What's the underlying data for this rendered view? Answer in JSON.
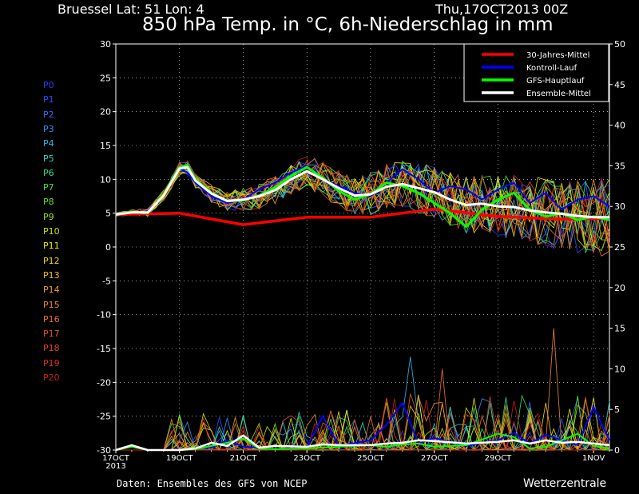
{
  "header": {
    "station": "Bruessel  Lat: 51 Lon: 4",
    "run": "Thu,17OCT2013 00Z",
    "title": "850 hPa Temp. in °C, 6h-Niederschlag in mm"
  },
  "footer": {
    "source": "Daten: Ensembles des GFS von NCEP",
    "brand": "Wetterzentrale"
  },
  "members": [
    {
      "label": "P0",
      "color": "#2040ff"
    },
    {
      "label": "P1",
      "color": "#2850ff"
    },
    {
      "label": "P2",
      "color": "#2e6cff"
    },
    {
      "label": "P3",
      "color": "#3490ff"
    },
    {
      "label": "P4",
      "color": "#30b8e8"
    },
    {
      "label": "P5",
      "color": "#30d8c8"
    },
    {
      "label": "P6",
      "color": "#30e090"
    },
    {
      "label": "P7",
      "color": "#40e050"
    },
    {
      "label": "P8",
      "color": "#60e020"
    },
    {
      "label": "P9",
      "color": "#98e010"
    },
    {
      "label": "P10",
      "color": "#c8e000"
    },
    {
      "label": "P11",
      "color": "#ecec00"
    },
    {
      "label": "P12",
      "color": "#f0d800"
    },
    {
      "label": "P13",
      "color": "#f0c000"
    },
    {
      "label": "P14",
      "color": "#f0a020"
    },
    {
      "label": "P15",
      "color": "#f08828"
    },
    {
      "label": "P16",
      "color": "#f07028"
    },
    {
      "label": "P17",
      "color": "#e85828"
    },
    {
      "label": "P18",
      "color": "#e04028"
    },
    {
      "label": "P19",
      "color": "#d83020"
    },
    {
      "label": "P20",
      "color": "#c82018"
    }
  ],
  "chart_data": {
    "type": "line",
    "x_ticks": [
      {
        "label": "17OCT",
        "sub": "2013",
        "t": 0
      },
      {
        "label": "19OCT",
        "t": 48
      },
      {
        "label": "21OCT",
        "t": 96
      },
      {
        "label": "23OCT",
        "t": 144
      },
      {
        "label": "25OCT",
        "t": 192
      },
      {
        "label": "27OCT",
        "t": 240
      },
      {
        "label": "29OCT",
        "t": 288
      },
      {
        "label": "1NOV",
        "t": 360
      }
    ],
    "xlim": [
      0,
      372
    ],
    "ylim_left": [
      -30,
      30
    ],
    "left_ticks": [
      30,
      25,
      20,
      15,
      10,
      5,
      0,
      -5,
      -10,
      -15,
      -20,
      -25,
      -30
    ],
    "ylim_right": [
      0,
      50
    ],
    "right_ticks": [
      50,
      45,
      40,
      35,
      30,
      25,
      20,
      15,
      10,
      5,
      0
    ],
    "grid": true,
    "legend_position": "top-right",
    "legend": [
      {
        "name": "30-Jahres-Mittel",
        "color": "#ff0000"
      },
      {
        "name": "Kontroll-Lauf",
        "color": "#0000ff"
      },
      {
        "name": "GFS-Hauptlauf",
        "color": "#00ff00"
      },
      {
        "name": "Ensemble-Mittel",
        "color": "#ffffff"
      }
    ],
    "temperature_series": [
      {
        "key": "climatology",
        "color": "#ff0000",
        "x": [
          0,
          48,
          96,
          144,
          192,
          240,
          288,
          336,
          372
        ],
        "values": [
          4.8,
          5.0,
          3.3,
          4.4,
          4.4,
          5.6,
          4.5,
          4.1,
          4.2
        ]
      },
      {
        "key": "control",
        "color": "#0000ff",
        "x": [
          0,
          12,
          18,
          24,
          36,
          48,
          54,
          60,
          72,
          84,
          96,
          108,
          120,
          132,
          144,
          156,
          168,
          180,
          192,
          204,
          216,
          228,
          240,
          252,
          264,
          276,
          288,
          300,
          312,
          324,
          336,
          348,
          360,
          372
        ],
        "values": [
          4.8,
          5.1,
          5.0,
          5.3,
          7.5,
          11.6,
          11.0,
          9.5,
          7.5,
          6.5,
          7.0,
          8.5,
          9.5,
          11.0,
          12.0,
          10.0,
          9.0,
          8.0,
          7.5,
          9.5,
          11.5,
          10.0,
          8.0,
          9.0,
          8.5,
          7.0,
          8.5,
          9.5,
          6.5,
          8.0,
          5.5,
          7.0,
          7.5,
          6.0
        ]
      },
      {
        "key": "operational",
        "color": "#00ff00",
        "x": [
          0,
          12,
          24,
          36,
          48,
          54,
          60,
          72,
          84,
          96,
          108,
          120,
          132,
          144,
          156,
          168,
          180,
          192,
          204,
          216,
          228,
          240,
          252,
          264,
          276,
          288,
          300,
          312,
          324,
          336,
          348,
          360,
          372
        ],
        "values": [
          4.8,
          5.2,
          5.0,
          7.8,
          11.8,
          12.1,
          10.0,
          8.0,
          6.8,
          6.9,
          7.6,
          8.8,
          10.5,
          11.8,
          10.2,
          8.3,
          7.0,
          7.8,
          9.5,
          9.0,
          8.0,
          6.5,
          5.0,
          3.0,
          5.5,
          7.0,
          8.0,
          5.5,
          4.5,
          5.0,
          4.0,
          4.5,
          4.0
        ]
      },
      {
        "key": "ensemble_mean",
        "color": "#ffffff",
        "x": [
          0,
          12,
          24,
          36,
          48,
          54,
          60,
          72,
          84,
          96,
          108,
          120,
          132,
          144,
          156,
          168,
          180,
          192,
          204,
          216,
          228,
          240,
          252,
          264,
          276,
          288,
          300,
          312,
          324,
          336,
          348,
          360,
          372
        ],
        "values": [
          4.8,
          5.1,
          5.1,
          7.6,
          11.6,
          11.8,
          9.8,
          7.9,
          6.8,
          7.0,
          7.5,
          8.4,
          10.0,
          11.2,
          10.0,
          8.7,
          7.6,
          7.8,
          8.9,
          9.3,
          8.7,
          8.1,
          7.0,
          6.2,
          6.4,
          6.0,
          5.9,
          5.4,
          5.1,
          4.9,
          4.6,
          4.4,
          4.4
        ]
      }
    ],
    "precipitation_series": [
      {
        "key": "control",
        "color": "#0000ff",
        "x": [
          0,
          12,
          24,
          48,
          60,
          72,
          84,
          96,
          108,
          120,
          144,
          156,
          168,
          192,
          204,
          216,
          228,
          240,
          264,
          288,
          300,
          312,
          324,
          336,
          348,
          360,
          372
        ],
        "values": [
          0,
          0.6,
          0,
          0,
          0.2,
          0.3,
          1.2,
          0.4,
          0.3,
          0.1,
          0.3,
          4.2,
          0.5,
          1.2,
          3.1,
          5.8,
          0.8,
          1.5,
          0.5,
          1.2,
          2.1,
          0.8,
          1.9,
          1.2,
          0.6,
          5.3,
          1.2
        ]
      },
      {
        "key": "operational",
        "color": "#00ff00",
        "x": [
          0,
          12,
          24,
          48,
          60,
          72,
          84,
          96,
          108,
          120,
          144,
          156,
          168,
          192,
          204,
          216,
          228,
          240,
          264,
          288,
          300,
          312,
          324,
          336,
          348,
          360,
          372
        ],
        "values": [
          0,
          0.4,
          0,
          0,
          0.1,
          0.5,
          0.9,
          1.4,
          0.2,
          0.1,
          0.2,
          0.3,
          0.4,
          0.6,
          0.4,
          0.7,
          0.8,
          0.4,
          0.6,
          2.0,
          1.6,
          0.2,
          0.4,
          1.2,
          2.0,
          0.5,
          0.2
        ]
      },
      {
        "key": "ensemble_mean",
        "color": "#ffffff",
        "x": [
          0,
          12,
          24,
          48,
          60,
          72,
          84,
          96,
          108,
          120,
          144,
          156,
          168,
          192,
          204,
          216,
          228,
          240,
          264,
          288,
          300,
          312,
          324,
          336,
          348,
          360,
          372
        ],
        "values": [
          0,
          0.6,
          0,
          0,
          0.2,
          0.9,
          0.5,
          1.8,
          0.3,
          0.5,
          0.4,
          0.7,
          0.6,
          0.6,
          0.8,
          0.9,
          1.2,
          1.1,
          0.8,
          1.0,
          1.2,
          0.8,
          1.2,
          0.9,
          1.0,
          0.8,
          0.6
        ]
      }
    ]
  }
}
